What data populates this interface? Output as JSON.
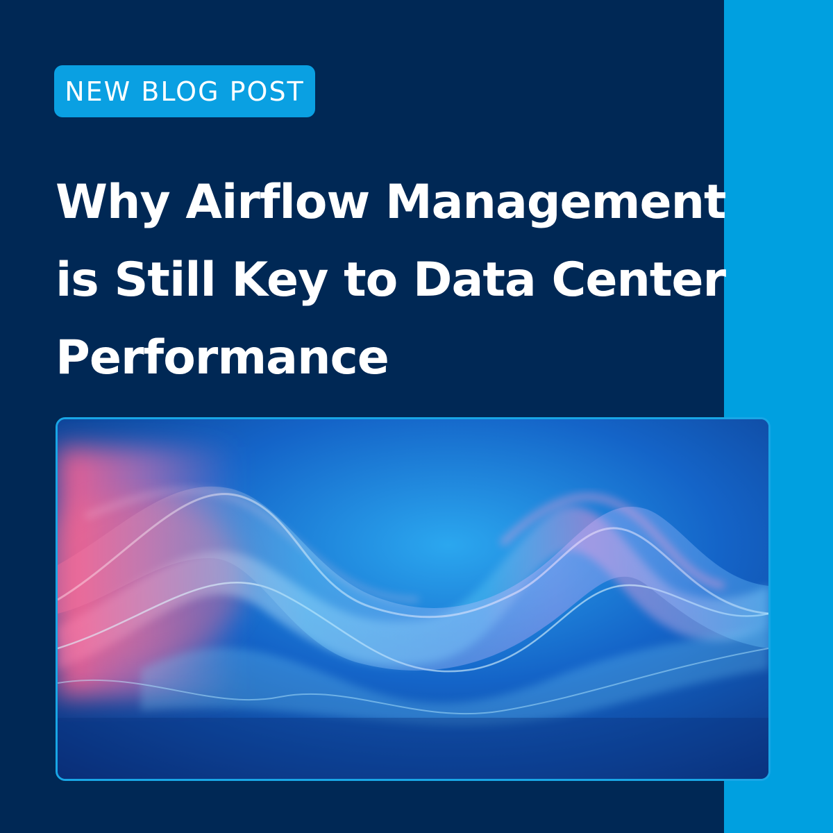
{
  "badge": {
    "label": "NEW BLOG POST"
  },
  "headline": {
    "line1": "Why Airflow Management",
    "line2": "is Still Key to Data Center",
    "line3": "Performance"
  },
  "hero_image": {
    "icon": "airflow-wave-image"
  },
  "colors": {
    "background": "#002855",
    "accent_stripe": "#00a0e0",
    "badge": "#0aa0e2",
    "text": "#ffffff"
  }
}
